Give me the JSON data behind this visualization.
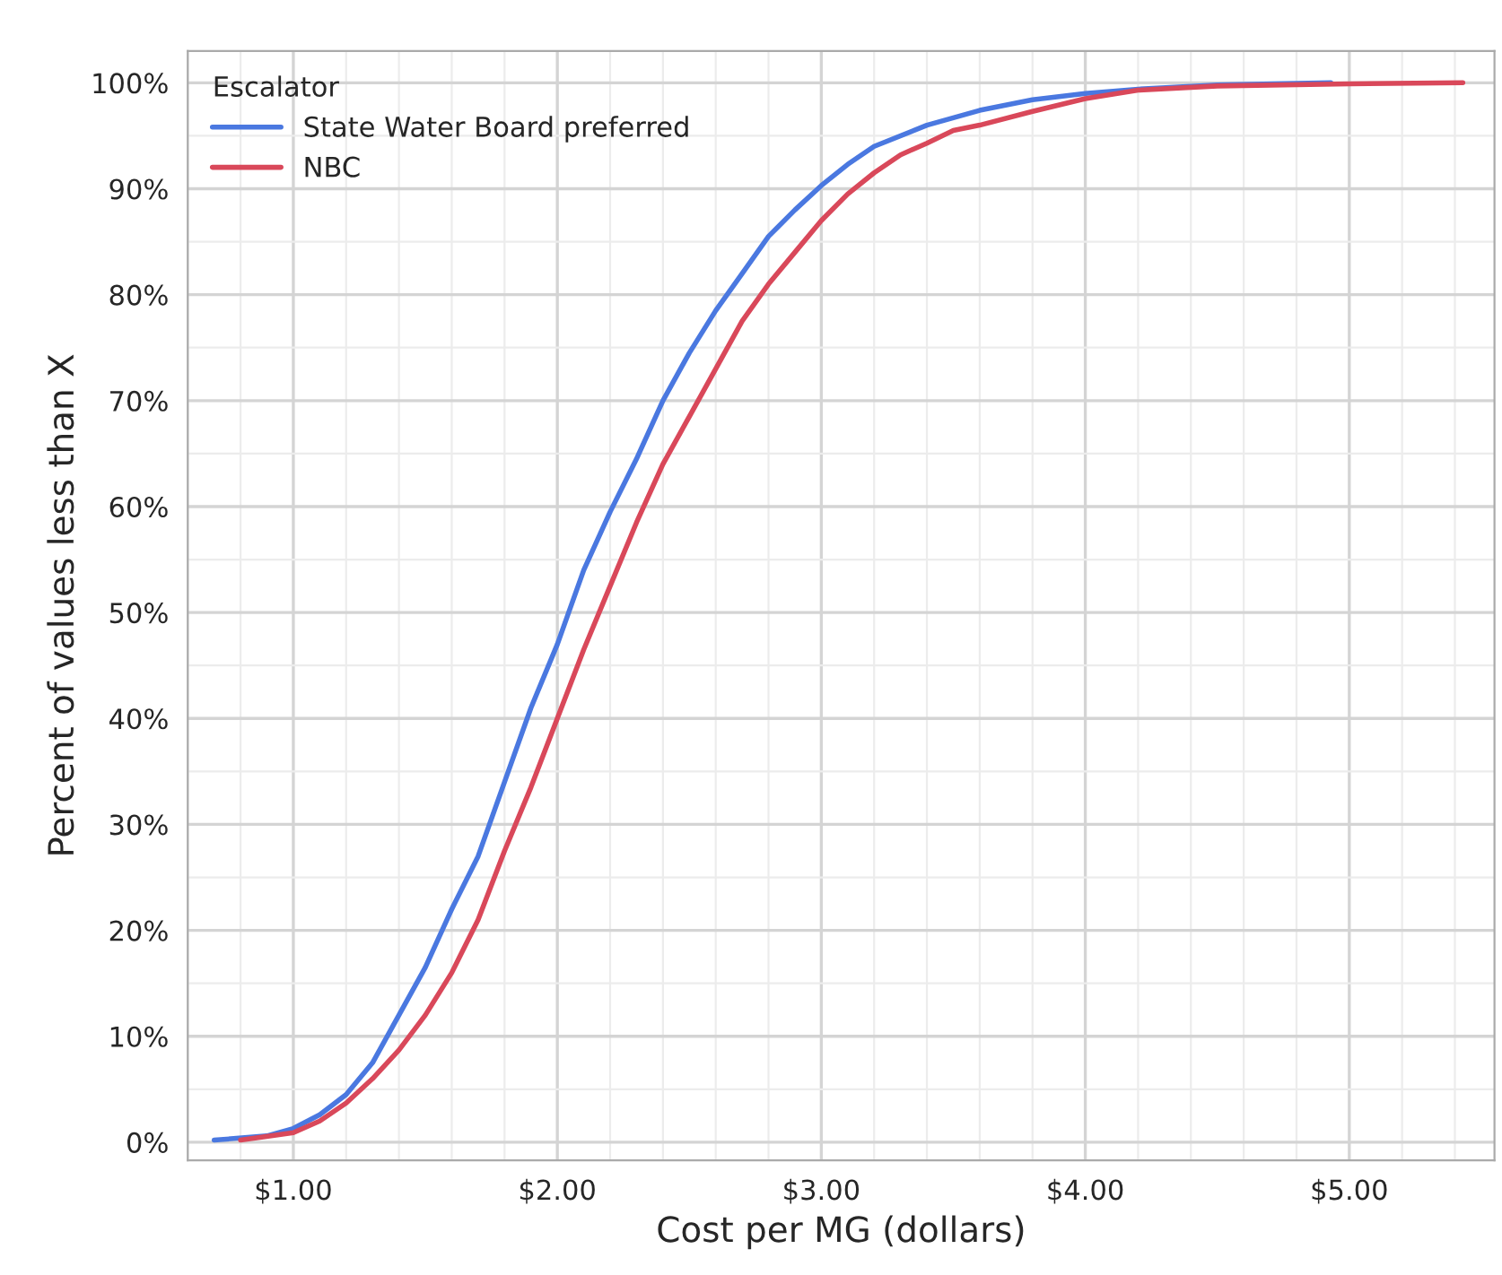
{
  "chart_data": {
    "type": "line",
    "xlabel": "Cost per MG (dollars)",
    "ylabel": "Percent of values less than X",
    "legend_title": "Escalator",
    "legend": "top left",
    "grid": true,
    "line_style": "solid",
    "marker": "none",
    "xlim": [
      0.6,
      5.55
    ],
    "ylim": [
      -1.7,
      103
    ],
    "xticks": [
      {
        "value": 1,
        "label": "$1.00"
      },
      {
        "value": 2,
        "label": "$2.00"
      },
      {
        "value": 3,
        "label": "$3.00"
      },
      {
        "value": 4,
        "label": "$4.00"
      },
      {
        "value": 5,
        "label": "$5.00"
      }
    ],
    "yticks": [
      {
        "value": 0,
        "label": "0%"
      },
      {
        "value": 10,
        "label": "10%"
      },
      {
        "value": 20,
        "label": "20%"
      },
      {
        "value": 30,
        "label": "30%"
      },
      {
        "value": 40,
        "label": "40%"
      },
      {
        "value": 50,
        "label": "50%"
      },
      {
        "value": 60,
        "label": "60%"
      },
      {
        "value": 70,
        "label": "70%"
      },
      {
        "value": 80,
        "label": "80%"
      },
      {
        "value": 90,
        "label": "90%"
      },
      {
        "value": 100,
        "label": "100%"
      }
    ],
    "series": [
      {
        "name": "State Water Board preferred",
        "color": "#4a78e0",
        "x": [
          0.7,
          0.9,
          1.0,
          1.1,
          1.2,
          1.3,
          1.4,
          1.5,
          1.6,
          1.7,
          1.8,
          1.9,
          2.0,
          2.1,
          2.2,
          2.3,
          2.4,
          2.5,
          2.6,
          2.7,
          2.8,
          2.9,
          3.0,
          3.1,
          3.2,
          3.4,
          3.6,
          3.8,
          4.0,
          4.2,
          4.5,
          4.93
        ],
        "values": [
          0.2,
          0.6,
          1.3,
          2.6,
          4.5,
          7.5,
          12,
          16.5,
          22,
          27,
          34,
          41,
          47,
          54,
          59.5,
          64.5,
          70,
          74.5,
          78.5,
          82,
          85.5,
          88,
          90.3,
          92.3,
          94,
          96,
          97.4,
          98.4,
          99,
          99.4,
          99.8,
          100
        ]
      },
      {
        "name": "NBC",
        "color": "#d9485a",
        "x": [
          0.8,
          1.0,
          1.1,
          1.2,
          1.3,
          1.4,
          1.5,
          1.6,
          1.7,
          1.8,
          1.9,
          2.0,
          2.1,
          2.2,
          2.3,
          2.4,
          2.5,
          2.6,
          2.7,
          2.8,
          2.9,
          3.0,
          3.1,
          3.2,
          3.3,
          3.4,
          3.5,
          3.6,
          3.8,
          4.0,
          4.2,
          4.5,
          5.0,
          5.43
        ],
        "values": [
          0.2,
          0.9,
          2.0,
          3.7,
          6.0,
          8.7,
          12,
          16,
          21,
          27.5,
          33.5,
          40,
          46.5,
          52.5,
          58.5,
          64,
          68.5,
          73,
          77.5,
          81,
          84,
          87,
          89.5,
          91.5,
          93.2,
          94.3,
          95.5,
          96,
          97.3,
          98.5,
          99.3,
          99.7,
          99.9,
          100
        ]
      }
    ]
  }
}
